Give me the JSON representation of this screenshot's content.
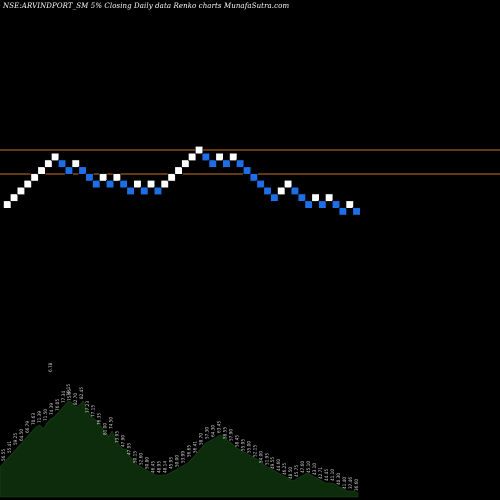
{
  "chart_data": {
    "type": "renko",
    "title": "NSE:ARVINDPORT_SM 5% Closing Daily data Renko charts MunafaSutra.com",
    "reference_levels": [
      {
        "name": "upper-level",
        "color": "#c87020"
      },
      {
        "name": "lower-level",
        "color": "#c87020"
      }
    ],
    "brick_colors": {
      "up": "#ffffff",
      "down": "#1e6fe6"
    },
    "bricks": [
      {
        "col": 0,
        "lvl": 0,
        "dir": "up"
      },
      {
        "col": 1,
        "lvl": 1,
        "dir": "up"
      },
      {
        "col": 2,
        "lvl": 2,
        "dir": "up"
      },
      {
        "col": 3,
        "lvl": 3,
        "dir": "up"
      },
      {
        "col": 4,
        "lvl": 4,
        "dir": "up"
      },
      {
        "col": 5,
        "lvl": 5,
        "dir": "up"
      },
      {
        "col": 6,
        "lvl": 6,
        "dir": "up"
      },
      {
        "col": 7,
        "lvl": 7,
        "dir": "up"
      },
      {
        "col": 8,
        "lvl": 6,
        "dir": "down"
      },
      {
        "col": 9,
        "lvl": 5,
        "dir": "down"
      },
      {
        "col": 10,
        "lvl": 6,
        "dir": "up"
      },
      {
        "col": 11,
        "lvl": 5,
        "dir": "down"
      },
      {
        "col": 12,
        "lvl": 4,
        "dir": "down"
      },
      {
        "col": 13,
        "lvl": 3,
        "dir": "down"
      },
      {
        "col": 14,
        "lvl": 4,
        "dir": "up"
      },
      {
        "col": 15,
        "lvl": 3,
        "dir": "down"
      },
      {
        "col": 16,
        "lvl": 4,
        "dir": "up"
      },
      {
        "col": 17,
        "lvl": 3,
        "dir": "down"
      },
      {
        "col": 18,
        "lvl": 2,
        "dir": "down"
      },
      {
        "col": 19,
        "lvl": 3,
        "dir": "up"
      },
      {
        "col": 20,
        "lvl": 2,
        "dir": "down"
      },
      {
        "col": 21,
        "lvl": 3,
        "dir": "up"
      },
      {
        "col": 22,
        "lvl": 2,
        "dir": "down"
      },
      {
        "col": 23,
        "lvl": 3,
        "dir": "up"
      },
      {
        "col": 24,
        "lvl": 4,
        "dir": "up"
      },
      {
        "col": 25,
        "lvl": 5,
        "dir": "up"
      },
      {
        "col": 26,
        "lvl": 6,
        "dir": "up"
      },
      {
        "col": 27,
        "lvl": 7,
        "dir": "up"
      },
      {
        "col": 28,
        "lvl": 8,
        "dir": "up"
      },
      {
        "col": 29,
        "lvl": 7,
        "dir": "down"
      },
      {
        "col": 30,
        "lvl": 6,
        "dir": "down"
      },
      {
        "col": 31,
        "lvl": 7,
        "dir": "up"
      },
      {
        "col": 32,
        "lvl": 6,
        "dir": "down"
      },
      {
        "col": 33,
        "lvl": 7,
        "dir": "up"
      },
      {
        "col": 34,
        "lvl": 6,
        "dir": "down"
      },
      {
        "col": 35,
        "lvl": 5,
        "dir": "down"
      },
      {
        "col": 36,
        "lvl": 4,
        "dir": "down"
      },
      {
        "col": 37,
        "lvl": 3,
        "dir": "down"
      },
      {
        "col": 38,
        "lvl": 2,
        "dir": "down"
      },
      {
        "col": 39,
        "lvl": 1,
        "dir": "down"
      },
      {
        "col": 40,
        "lvl": 2,
        "dir": "up"
      },
      {
        "col": 41,
        "lvl": 3,
        "dir": "up"
      },
      {
        "col": 42,
        "lvl": 2,
        "dir": "down"
      },
      {
        "col": 43,
        "lvl": 1,
        "dir": "down"
      },
      {
        "col": 44,
        "lvl": 0,
        "dir": "down"
      },
      {
        "col": 45,
        "lvl": 1,
        "dir": "up"
      },
      {
        "col": 46,
        "lvl": 0,
        "dir": "down"
      },
      {
        "col": 47,
        "lvl": 1,
        "dir": "up"
      },
      {
        "col": 48,
        "lvl": 0,
        "dir": "down"
      },
      {
        "col": 49,
        "lvl": -1,
        "dir": "down"
      },
      {
        "col": 50,
        "lvl": 0,
        "dir": "up"
      },
      {
        "col": 51,
        "lvl": -1,
        "dir": "down"
      }
    ],
    "volume_profile": [
      30,
      34,
      38,
      42,
      46,
      50,
      54,
      58,
      62,
      66,
      70,
      72,
      68,
      74,
      78,
      80,
      84,
      88,
      92,
      96,
      94,
      90,
      92,
      96,
      88,
      82,
      78,
      76,
      70,
      66,
      60,
      66,
      58,
      52,
      48,
      48,
      40,
      36,
      32,
      30,
      28,
      26,
      24,
      22,
      22,
      22,
      22,
      24,
      26,
      28,
      30,
      32,
      34,
      38,
      42,
      46,
      50,
      54,
      56,
      58,
      60,
      62,
      60,
      56,
      54,
      50,
      48,
      46,
      44,
      42,
      40,
      38,
      36,
      32,
      30,
      28,
      26,
      24,
      22,
      20,
      18,
      16,
      18,
      20,
      22,
      24,
      22,
      20,
      18,
      16,
      14,
      14,
      14,
      12,
      10,
      8,
      6,
      6,
      6,
      4
    ],
    "volume_labels": [
      "56.55",
      "55.41",
      "59.25",
      "64.50",
      "66.79",
      "70.63",
      "71.39",
      "71.50",
      "74.39",
      "76.05",
      "77.34",
      "75.65",
      "82.70",
      "82.45",
      "77.23",
      "77.15",
      "76.35",
      "81.00",
      "74.50",
      "73.95",
      "47.90",
      "47.95",
      "50.15",
      "52.60",
      "50.80",
      "46.45",
      "48.95",
      "48.14",
      "45.95",
      "50.00",
      "53.99",
      "56.65",
      "56.41",
      "58.70",
      "57.30",
      "64.30",
      "63.45",
      "58.55",
      "57.90",
      "58.45",
      "55.95",
      "55.00",
      "52.15",
      "54.00",
      "51.95",
      "49.55",
      "44.60",
      "46.25",
      "48.50",
      "45.75",
      "47.60",
      "45.10",
      "43.10",
      "42.71",
      "44.45",
      "41.10",
      "40.30",
      "41.40",
      "37.46",
      "36.60"
    ],
    "volume_top_labels": [
      "6.78",
      "76.15"
    ],
    "volume_color": "#0c2c0c"
  }
}
